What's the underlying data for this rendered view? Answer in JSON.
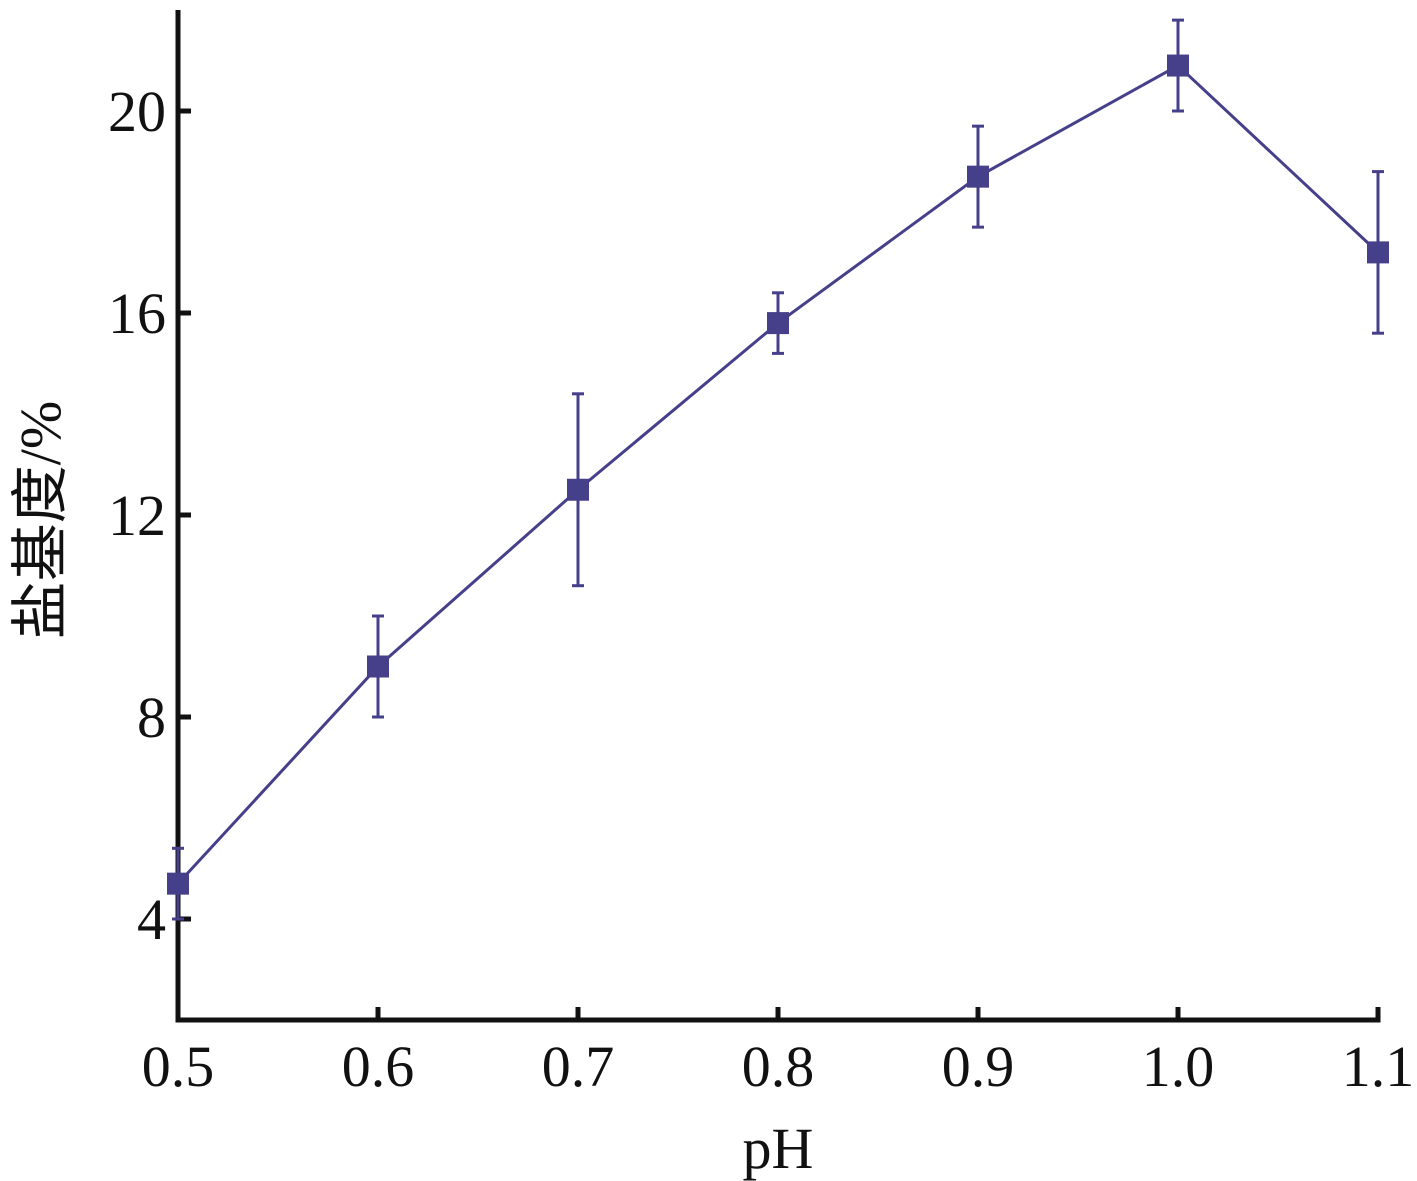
{
  "chart_data": {
    "type": "line",
    "xlabel": "pH",
    "ylabel": "盐基度/%",
    "xlim": [
      0.5,
      1.1
    ],
    "ylim": [
      2,
      22
    ],
    "x_ticks": [
      0.5,
      0.6,
      0.7,
      0.8,
      0.9,
      1.0,
      1.1
    ],
    "x_tick_labels": [
      "0.5",
      "0.6",
      "0.7",
      "0.8",
      "0.9",
      "1.0",
      "1.1"
    ],
    "y_ticks": [
      4,
      8,
      12,
      16,
      20
    ],
    "y_tick_labels": [
      "4",
      "8",
      "12",
      "16",
      "20"
    ],
    "grid": false,
    "legend": "none",
    "series": [
      {
        "color": "#46408a",
        "marker": "square",
        "x": [
          0.5,
          0.6,
          0.7,
          0.8,
          0.9,
          1.0,
          1.1
        ],
        "y": [
          4.7,
          9.0,
          12.5,
          15.8,
          18.7,
          20.9,
          17.2
        ],
        "error": [
          0.7,
          1.0,
          1.9,
          0.6,
          1.0,
          0.9,
          1.6
        ]
      }
    ]
  }
}
